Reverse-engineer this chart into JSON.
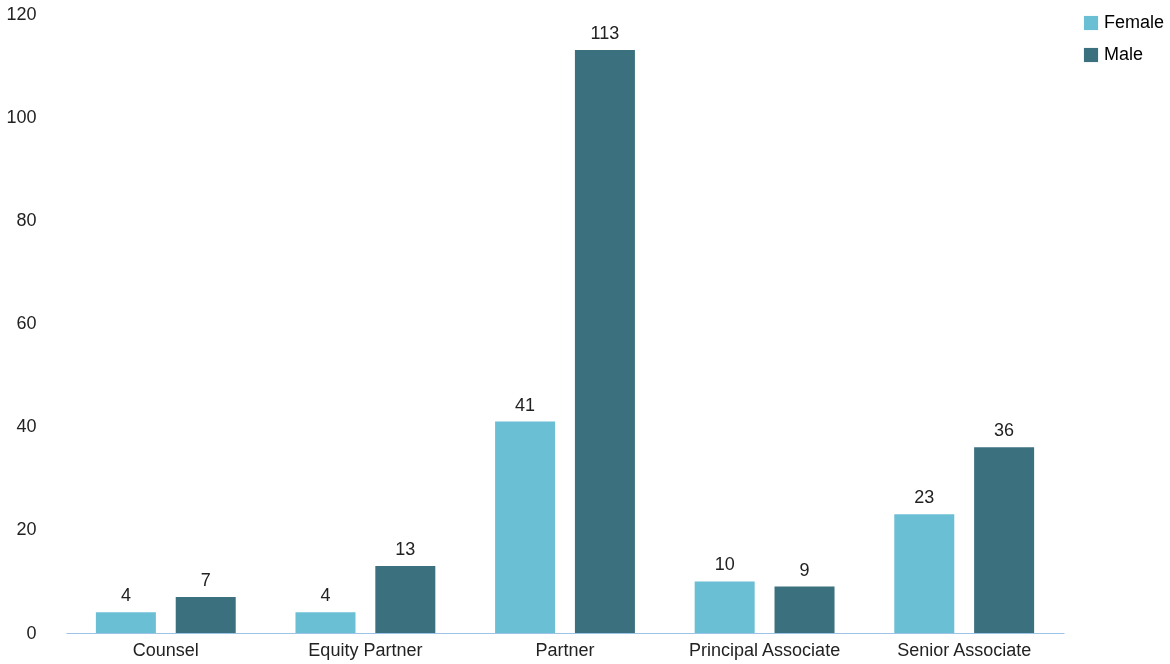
{
  "chart_data": {
    "type": "bar",
    "categories": [
      "Counsel",
      "Equity Partner",
      "Partner",
      "Principal Associate",
      "Senior Associate"
    ],
    "series": [
      {
        "name": "Female",
        "color": "#6bbfd4",
        "values": [
          4,
          4,
          41,
          10,
          23
        ]
      },
      {
        "name": "Male",
        "color": "#3b717f",
        "values": [
          7,
          13,
          113,
          9,
          36
        ]
      }
    ],
    "ylim": [
      0,
      120
    ],
    "yticks": [
      0,
      20,
      40,
      60,
      80,
      100,
      120
    ],
    "grid": false,
    "legend": "right",
    "data_labels": true
  }
}
